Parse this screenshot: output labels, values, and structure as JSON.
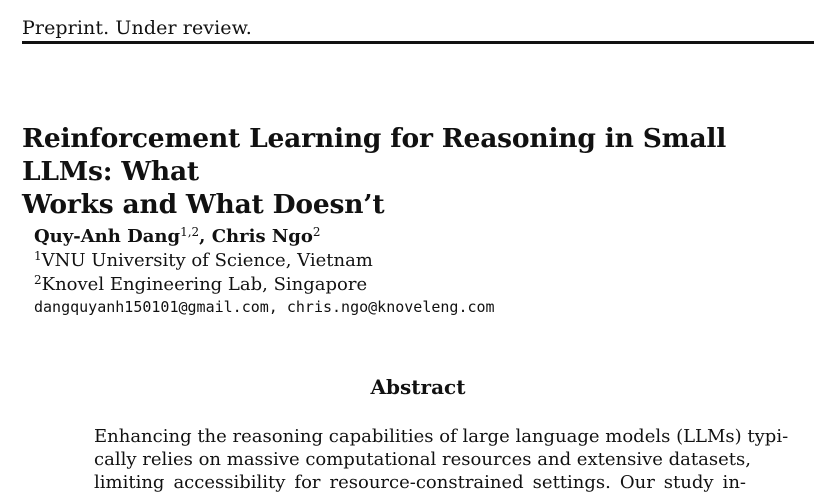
{
  "header": {
    "text": "Preprint. Under review."
  },
  "title": {
    "line1": "Reinforcement Learning for Reasoning in Small LLMs: What",
    "line2": "Works and What Doesn’t"
  },
  "authors": [
    {
      "name": "Quy-Anh Dang",
      "affiliations": "1,2",
      "separator": ", "
    },
    {
      "name": "Chris Ngo",
      "affiliations": "2",
      "separator": ""
    }
  ],
  "affiliations": [
    {
      "index": "1",
      "text": "VNU University of Science, Vietnam"
    },
    {
      "index": "2",
      "text": "Knovel Engineering Lab, Singapore"
    }
  ],
  "emails": "dangquyanh150101@gmail.com, chris.ngo@knoveleng.com",
  "abstract": {
    "heading": "Abstract",
    "lines": [
      "Enhancing the reasoning capabilities of large language models (LLMs) typi-",
      "cally relies on massive computational resources and extensive datasets,",
      "limiting accessibility for resource-constrained settings. Our study in-"
    ]
  }
}
